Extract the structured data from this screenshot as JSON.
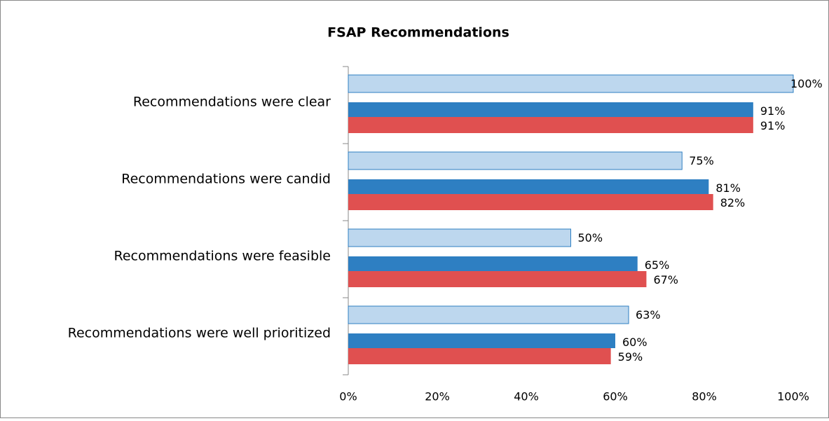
{
  "chart_data": {
    "type": "hbar",
    "title": "FSAP Recommendations",
    "categories": [
      "Recommendations were clear",
      "Recommendations were candid",
      "Recommendations were feasible",
      "Recommendations were well prioritized"
    ],
    "series": [
      {
        "color": "#bdd7ee",
        "values": [
          100,
          75,
          50,
          63
        ],
        "value_labels": [
          "100%",
          "75%",
          "50%",
          "63%"
        ]
      },
      {
        "color": "#2e7fc2",
        "values": [
          91,
          81,
          65,
          60
        ],
        "value_labels": [
          "91%",
          "81%",
          "65%",
          "60%"
        ]
      },
      {
        "color": "#e05050",
        "values": [
          91,
          82,
          67,
          59
        ],
        "value_labels": [
          "91%",
          "82%",
          "67%",
          "59%"
        ]
      }
    ],
    "xlim": [
      0,
      100
    ],
    "xticks": [
      {
        "value": 0,
        "label": "0%"
      },
      {
        "value": 20,
        "label": "20%"
      },
      {
        "value": 40,
        "label": "40%"
      },
      {
        "value": 60,
        "label": "60%"
      },
      {
        "value": 80,
        "label": "80%"
      },
      {
        "value": 100,
        "label": "100%"
      }
    ]
  }
}
